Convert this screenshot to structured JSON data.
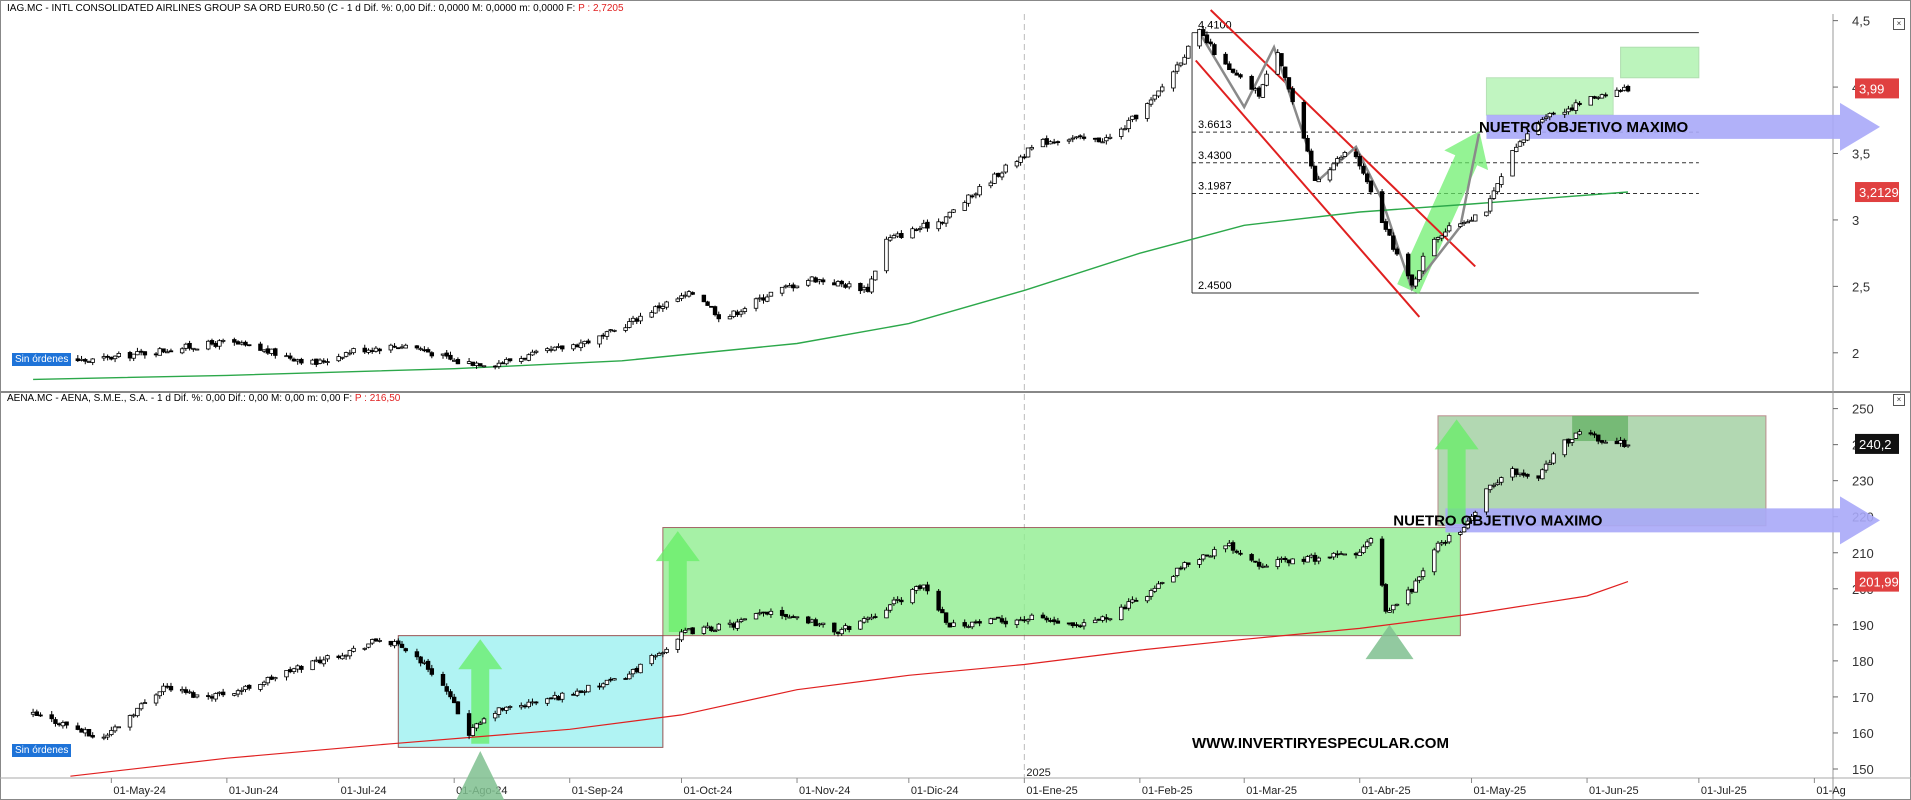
{
  "watermark": "WWW.INVERTIRYESPECULAR.COM",
  "chart_data": [
    {
      "type": "candlestick",
      "title": "IAG.MC - INTL CONSOLIDATED AIRLINES GROUP SA ORD EUR0.50 (C - 1 d Dif. %: 0,00 Dif.: 0,0000 M: 0,0000 m: 0,0000 F:",
      "price_label": "P : 2,7205",
      "order_label": "Sin órdenes",
      "ylim": [
        1.72,
        4.55
      ],
      "y_ticks": [
        2,
        2.5,
        3,
        3.5,
        4,
        4.5
      ],
      "y_tick_labels": [
        "2",
        "2,5",
        "3",
        "3,5",
        "4",
        "4,5"
      ],
      "last_price": "3,99",
      "ma_value": "3,2129",
      "close_path": [
        [
          "2024-04-10",
          1.97
        ],
        [
          "2024-04-25",
          1.94
        ],
        [
          "2024-05-15",
          2.02
        ],
        [
          "2024-06-01",
          2.08
        ],
        [
          "2024-06-15",
          1.99
        ],
        [
          "2024-06-25",
          1.92
        ],
        [
          "2024-07-05",
          2.02
        ],
        [
          "2024-07-20",
          2.06
        ],
        [
          "2024-08-02",
          1.93
        ],
        [
          "2024-08-12",
          1.92
        ],
        [
          "2024-08-25",
          2.0
        ],
        [
          "2024-09-10",
          2.12
        ],
        [
          "2024-09-25",
          2.35
        ],
        [
          "2024-10-05",
          2.46
        ],
        [
          "2024-10-12",
          2.25
        ],
        [
          "2024-10-25",
          2.45
        ],
        [
          "2024-11-05",
          2.56
        ],
        [
          "2024-11-20",
          2.48
        ],
        [
          "2024-11-25",
          2.85
        ],
        [
          "2024-12-10",
          3.0
        ],
        [
          "2024-12-25",
          3.35
        ],
        [
          "2025-01-05",
          3.58
        ],
        [
          "2025-01-12",
          3.62
        ],
        [
          "2025-01-20",
          3.6
        ],
        [
          "2025-01-25",
          3.62
        ],
        [
          "2025-02-05",
          3.92
        ],
        [
          "2025-02-17",
          4.41
        ],
        [
          "2025-02-25",
          4.12
        ],
        [
          "2025-03-05",
          3.95
        ],
        [
          "2025-03-10",
          4.28
        ],
        [
          "2025-03-20",
          3.3
        ],
        [
          "2025-03-30",
          3.55
        ],
        [
          "2025-04-08",
          2.92
        ],
        [
          "2025-04-15",
          2.5
        ],
        [
          "2025-04-20",
          2.85
        ],
        [
          "2025-04-28",
          2.98
        ],
        [
          "2025-05-05",
          3.08
        ],
        [
          "2025-05-12",
          3.5
        ],
        [
          "2025-05-20",
          3.78
        ],
        [
          "2025-05-28",
          3.85
        ],
        [
          "2025-06-05",
          3.95
        ],
        [
          "2025-06-12",
          3.99
        ]
      ],
      "moving_average": [
        [
          "2024-04-10",
          1.8
        ],
        [
          "2024-06-01",
          1.83
        ],
        [
          "2024-08-01",
          1.88
        ],
        [
          "2024-09-15",
          1.94
        ],
        [
          "2024-11-01",
          2.07
        ],
        [
          "2024-12-01",
          2.22
        ],
        [
          "2025-01-01",
          2.47
        ],
        [
          "2025-02-01",
          2.75
        ],
        [
          "2025-03-01",
          2.96
        ],
        [
          "2025-04-01",
          3.06
        ],
        [
          "2025-05-01",
          3.12
        ],
        [
          "2025-06-12",
          3.21
        ]
      ],
      "fibonacci_levels": [
        {
          "value": 4.41,
          "label": "4.4100"
        },
        {
          "value": 3.6613,
          "label": "3.6613"
        },
        {
          "value": 3.43,
          "label": "3.4300"
        },
        {
          "value": 3.1987,
          "label": "3.1987"
        },
        {
          "value": 2.45,
          "label": "2.4500"
        }
      ],
      "annotation": "NUETRO OBJETIVO MAXIMO"
    },
    {
      "type": "candlestick",
      "title": "AENA.MC - AENA, S.M.E., S.A. - 1 d Dif. %: 0,00 Dif.: 0,00 M: 0,00 m: 0,00 F:",
      "price_label": "P : 216,50",
      "order_label": "Sin órdenes",
      "ylim": [
        147.5,
        251
      ],
      "y_ticks": [
        150,
        160,
        170,
        180,
        190,
        200,
        210,
        220,
        230,
        240,
        250
      ],
      "y_tick_labels": [
        "150",
        "160",
        "170",
        "180",
        "190",
        "200",
        "210",
        "220",
        "230",
        "240",
        "250"
      ],
      "last_price": "240,2",
      "ma_value": "201,99",
      "close_path": [
        [
          "2024-04-10",
          165
        ],
        [
          "2024-04-20",
          162
        ],
        [
          "2024-04-28",
          158
        ],
        [
          "2024-05-05",
          164
        ],
        [
          "2024-05-15",
          173
        ],
        [
          "2024-05-25",
          170
        ],
        [
          "2024-06-05",
          172
        ],
        [
          "2024-06-15",
          176
        ],
        [
          "2024-06-25",
          180
        ],
        [
          "2024-07-05",
          183
        ],
        [
          "2024-07-12",
          186
        ],
        [
          "2024-07-20",
          183
        ],
        [
          "2024-07-28",
          175
        ],
        [
          "2024-08-05",
          160
        ],
        [
          "2024-08-12",
          166
        ],
        [
          "2024-08-25",
          169
        ],
        [
          "2024-09-05",
          172
        ],
        [
          "2024-09-15",
          175
        ],
        [
          "2024-09-25",
          182
        ],
        [
          "2024-10-02",
          188
        ],
        [
          "2024-10-15",
          190
        ],
        [
          "2024-10-25",
          194
        ],
        [
          "2024-11-05",
          191
        ],
        [
          "2024-11-12",
          188
        ],
        [
          "2024-11-22",
          193
        ],
        [
          "2024-12-05",
          201
        ],
        [
          "2024-12-12",
          190
        ],
        [
          "2024-12-25",
          191
        ],
        [
          "2025-01-05",
          192
        ],
        [
          "2025-01-15",
          189
        ],
        [
          "2025-01-25",
          193
        ],
        [
          "2025-02-05",
          200
        ],
        [
          "2025-02-15",
          208
        ],
        [
          "2025-02-25",
          212
        ],
        [
          "2025-03-05",
          207
        ],
        [
          "2025-03-15",
          208
        ],
        [
          "2025-03-25",
          209
        ],
        [
          "2025-04-01",
          210
        ],
        [
          "2025-04-05",
          215
        ],
        [
          "2025-04-08",
          193
        ],
        [
          "2025-04-15",
          200
        ],
        [
          "2025-04-22",
          212
        ],
        [
          "2025-04-30",
          218
        ],
        [
          "2025-05-05",
          227
        ],
        [
          "2025-05-12",
          233
        ],
        [
          "2025-05-18",
          230
        ],
        [
          "2025-05-25",
          240
        ],
        [
          "2025-06-01",
          244
        ],
        [
          "2025-06-05",
          241
        ],
        [
          "2025-06-12",
          240.2
        ]
      ],
      "moving_average": [
        [
          "2024-04-20",
          148
        ],
        [
          "2024-06-01",
          153
        ],
        [
          "2024-07-15",
          157
        ],
        [
          "2024-09-01",
          161
        ],
        [
          "2024-10-01",
          165
        ],
        [
          "2024-11-01",
          172
        ],
        [
          "2024-12-01",
          176
        ],
        [
          "2025-01-01",
          179
        ],
        [
          "2025-02-01",
          183
        ],
        [
          "2025-03-01",
          186
        ],
        [
          "2025-04-01",
          189
        ],
        [
          "2025-05-01",
          193
        ],
        [
          "2025-06-01",
          198
        ],
        [
          "2025-06-12",
          202
        ]
      ],
      "annotation": "NUETRO OBJETIVO MAXIMO"
    }
  ],
  "x_axis": {
    "year_label": "2025",
    "ticks": [
      {
        "date": "2024-05-01",
        "label": "01-May-24"
      },
      {
        "date": "2024-06-01",
        "label": "01-Jun-24"
      },
      {
        "date": "2024-07-01",
        "label": "01-Jul-24"
      },
      {
        "date": "2024-08-01",
        "label": "01-Ago-24"
      },
      {
        "date": "2024-09-01",
        "label": "01-Sep-24"
      },
      {
        "date": "2024-10-01",
        "label": "01-Oct-24"
      },
      {
        "date": "2024-11-01",
        "label": "01-Nov-24"
      },
      {
        "date": "2024-12-01",
        "label": "01-Dic-24"
      },
      {
        "date": "2025-01-01",
        "label": "01-Ene-25"
      },
      {
        "date": "2025-02-01",
        "label": "01-Feb-25"
      },
      {
        "date": "2025-03-01",
        "label": "01-Mar-25"
      },
      {
        "date": "2025-04-01",
        "label": "01-Abr-25"
      },
      {
        "date": "2025-05-01",
        "label": "01-May-25"
      },
      {
        "date": "2025-06-01",
        "label": "01-Jun-25"
      },
      {
        "date": "2025-07-01",
        "label": "01-Jul-25"
      },
      {
        "date": "2025-08-01",
        "label": "01-Ag"
      }
    ]
  },
  "colors": {
    "moving_average_top": "#2ca84a",
    "moving_average_bottom": "#e02020",
    "channel_lines": "#e02020",
    "green_box": "#90ee90",
    "cyan_box": "#a8f2f2",
    "target_arrow": "#a8a8f8",
    "up_arrow": "#66ee66",
    "price_badge_red": "#e04040",
    "price_badge_black": "#111111"
  }
}
